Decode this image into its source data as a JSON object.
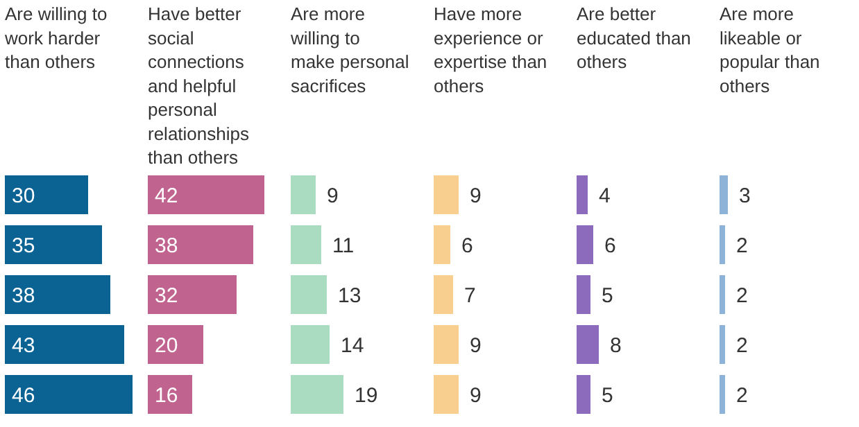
{
  "chart_data": [
    {
      "type": "bar",
      "orientation": "horizontal",
      "title": "Are willing to work harder than others",
      "categories": [
        null,
        null,
        null,
        null,
        null
      ],
      "values": [
        30,
        35,
        38,
        43,
        46
      ],
      "color": "#0b6394",
      "data_labels": true
    },
    {
      "type": "bar",
      "orientation": "horizontal",
      "title": "Have better social connections and helpful personal relationships than others",
      "categories": [
        null,
        null,
        null,
        null,
        null
      ],
      "values": [
        42,
        38,
        32,
        20,
        16
      ],
      "color": "#c0648f",
      "data_labels": true
    },
    {
      "type": "bar",
      "orientation": "horizontal",
      "title": "Are more willing to make personal sacrifices",
      "categories": [
        null,
        null,
        null,
        null,
        null
      ],
      "values": [
        9,
        11,
        13,
        14,
        19
      ],
      "color": "#a9dcc0",
      "data_labels": true
    },
    {
      "type": "bar",
      "orientation": "horizontal",
      "title": "Have more experience or expertise than others",
      "categories": [
        null,
        null,
        null,
        null,
        null
      ],
      "values": [
        9,
        6,
        7,
        9,
        9
      ],
      "color": "#f8cf8e",
      "data_labels": true
    },
    {
      "type": "bar",
      "orientation": "horizontal",
      "title": "Are better educated than others",
      "categories": [
        null,
        null,
        null,
        null,
        null
      ],
      "values": [
        4,
        6,
        5,
        8,
        5
      ],
      "color": "#8c6bbd",
      "data_labels": true
    },
    {
      "type": "bar",
      "orientation": "horizontal",
      "title": "Are more likeable or popular than others",
      "categories": [
        null,
        null,
        null,
        null,
        null
      ],
      "values": [
        3,
        2,
        2,
        2,
        2
      ],
      "color": "#8db4d8",
      "data_labels": true
    }
  ]
}
